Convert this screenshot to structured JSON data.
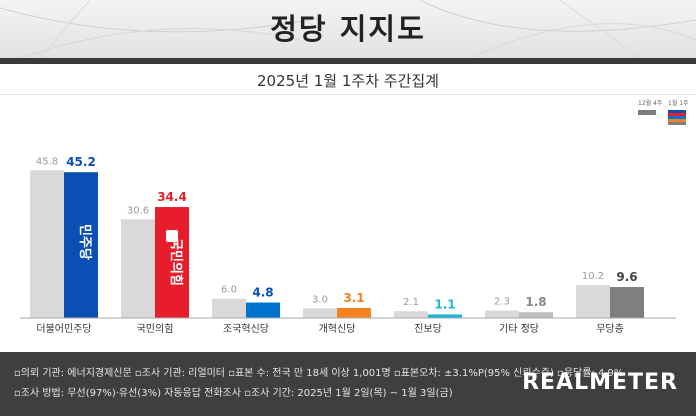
{
  "header": {
    "title": "정당 지지도",
    "subtitle": "2025년 1월 1주차 주간집계"
  },
  "legend": {
    "prev_label": "12월 4주",
    "current_label": "1월 1주"
  },
  "colors": {
    "prev_bar": "#d9d9d9",
    "democratic": "#0a4fb4",
    "ppp": "#e61e2b",
    "rebuilding": "#0073cf",
    "reform": "#f58220",
    "progressive": "#19b6d8",
    "other": "#cccccc",
    "independent": "#8c8c8c"
  },
  "logos": {
    "democratic": "민주당",
    "ppp": "국민의힘"
  },
  "chart_data": {
    "type": "bar",
    "title": "정당 지지도",
    "subtitle": "2025년 1월 1주차 주간집계",
    "categories": [
      "더불어민주당",
      "국민의힘",
      "조국혁신당",
      "개혁신당",
      "진보당",
      "기타 정당",
      "무당층"
    ],
    "series": [
      {
        "name": "12월 4주",
        "values": [
          45.8,
          30.6,
          6.0,
          3.0,
          2.1,
          2.3,
          10.2
        ]
      },
      {
        "name": "1월 1주",
        "values": [
          45.2,
          34.4,
          4.8,
          3.1,
          1.1,
          1.8,
          9.6
        ]
      }
    ],
    "value_labels_prev": [
      "45.8",
      "30.6",
      "6.0",
      "3.0",
      "2.1",
      "2.3",
      "10.2"
    ],
    "value_labels_current": [
      "45.2",
      "34.4",
      "4.8",
      "3.1",
      "1.1",
      "1.8",
      "9.6"
    ],
    "current_colors": [
      "#0a4fb4",
      "#e61e2b",
      "#0073cf",
      "#f58220",
      "#19b6d8",
      "#bdbdbd",
      "#7f7f7f"
    ],
    "current_label_colors": [
      "#0a4fb4",
      "#e61e2b",
      "#0a4fb4",
      "#f58220",
      "#19b6d8",
      "#888888",
      "#444444"
    ],
    "ylim": [
      0,
      50
    ],
    "grid": false,
    "legend_position": "top-right"
  },
  "footer": {
    "line1": "▫의뢰 기관: 에너지경제신문  ▫조사 기관: 리얼미터  ▫표본 수: 전국 만 18세 이상 1,001명  ▫표본오차: ±3.1%P(95% 신뢰수준)  ▫응답률: 4.9%",
    "line2": "▫조사 방법: 무선(97%)·유선(3%) 자동응답 전화조사  ▫조사 기간: 2025년 1월 2일(목) ~ 1월 3일(금)",
    "logo": "REALMETER"
  }
}
